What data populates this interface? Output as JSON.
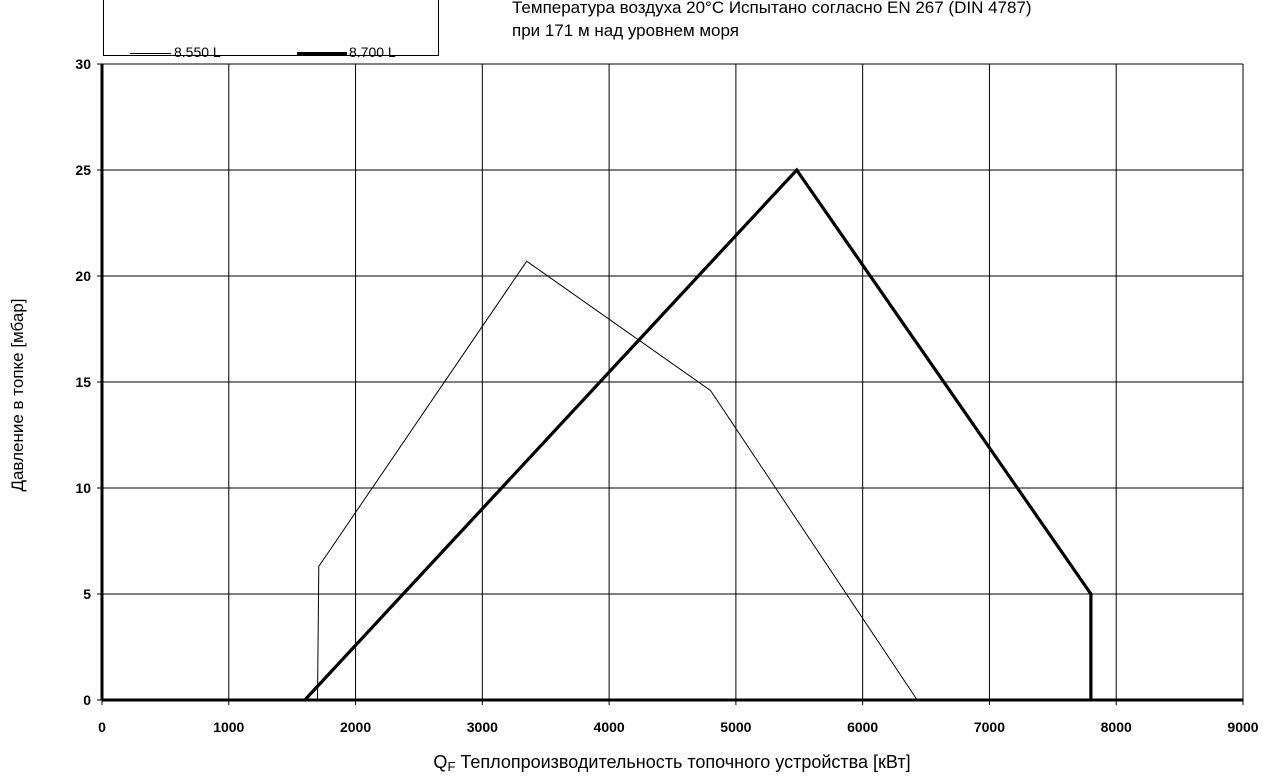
{
  "annotation": {
    "line1": "Температура воздуха 20°C Испытано согласно EN 267 (DIN 4787)",
    "line2": "при 171 м над уровнем моря"
  },
  "chart_data": {
    "type": "line",
    "xlabel_prefix": "Q",
    "xlabel_sub": "F",
    "xlabel_rest": " Теплопроизводительность топочного устройства [кВт]",
    "ylabel": "Давление в топке [мбар]",
    "xlim": [
      0,
      9000
    ],
    "ylim": [
      0,
      30
    ],
    "xticks": [
      0,
      1000,
      2000,
      3000,
      4000,
      5000,
      6000,
      7000,
      8000,
      9000
    ],
    "yticks": [
      0,
      5,
      10,
      15,
      20,
      25,
      30
    ],
    "grid": true,
    "legend_position": "top-left",
    "series": [
      {
        "name": "8.550 L",
        "style": "thin",
        "color": "#000000",
        "points": [
          [
            1700,
            0
          ],
          [
            1710,
            6.3
          ],
          [
            3350,
            20.7
          ],
          [
            4800,
            14.6
          ],
          [
            6430,
            0
          ]
        ]
      },
      {
        "name": "8.700 L",
        "style": "thick",
        "color": "#000000",
        "points": [
          [
            1600,
            0
          ],
          [
            5480,
            25
          ],
          [
            7800,
            5
          ],
          [
            7800,
            0
          ]
        ]
      }
    ]
  }
}
